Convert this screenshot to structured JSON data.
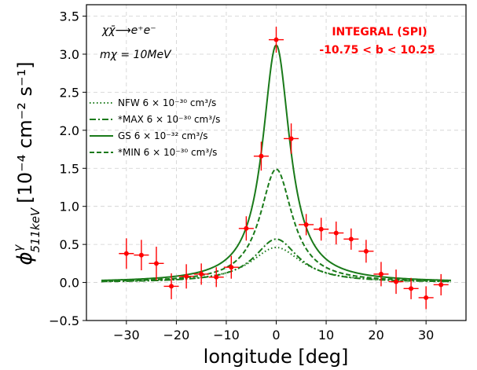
{
  "chart_data": {
    "type": "line",
    "xlabel": "longitude [deg]",
    "ylabel": {
      "main": "ϕ",
      "sup": "γ",
      "sub": "511keV",
      "units": "[10⁻⁴ cm⁻² s⁻¹]"
    },
    "xlim": [
      -38,
      38
    ],
    "ylim": [
      -0.5,
      3.65
    ],
    "xticks": [
      -30,
      -20,
      -10,
      0,
      10,
      20,
      30
    ],
    "yticks": [
      -0.5,
      0.0,
      0.5,
      1.0,
      1.5,
      2.0,
      2.5,
      3.0,
      3.5
    ],
    "xtick_labels": [
      "−30",
      "−20",
      "−10",
      "0",
      "10",
      "20",
      "30"
    ],
    "ytick_labels": [
      "−0.5",
      "0.0",
      "0.5",
      "1.0",
      "1.5",
      "2.0",
      "2.5",
      "3.0",
      "3.5"
    ],
    "grid": true,
    "annotations": {
      "process": "χχ̄⟶e⁺e⁻",
      "mass": "mχ = 10MeV",
      "instrument": "INTEGRAL (SPI)",
      "latitude_range": "-10.75  <  b  <  10.25"
    },
    "legend_position": "center-left",
    "series": [
      {
        "name": "NFW 6 × 10⁻³⁰ cm³/s",
        "style": "dotted",
        "peak": 0.46,
        "width": 6.2
      },
      {
        "name": "*MAX 6 × 10⁻³⁰ cm³/s",
        "style": "dashdot",
        "peak": 0.57,
        "width": 5.3
      },
      {
        "name": "GS 6 × 10⁻³² cm³/s",
        "style": "solid",
        "peak": 3.12,
        "width": 3.3
      },
      {
        "name": "*MIN 6 × 10⁻³⁰ cm³/s",
        "style": "dashed",
        "peak": 1.49,
        "width": 3.9
      }
    ],
    "curve_x_range": [
      -35,
      35
    ],
    "line_color": "#1a7a1a",
    "points": {
      "color": "#ff0000",
      "x": [
        -30,
        -27,
        -24,
        -21,
        -18,
        -15,
        -12,
        -9,
        -6,
        -3,
        0,
        3,
        6,
        9,
        12,
        15,
        18,
        21,
        24,
        27,
        30,
        33
      ],
      "y": [
        0.38,
        0.36,
        0.25,
        -0.05,
        0.08,
        0.11,
        0.07,
        0.2,
        0.71,
        1.66,
        3.19,
        1.89,
        0.76,
        0.7,
        0.65,
        0.57,
        0.41,
        0.11,
        0.01,
        -0.08,
        -0.2,
        -0.03
      ],
      "yerr": [
        0.2,
        0.2,
        0.22,
        0.17,
        0.16,
        0.14,
        0.13,
        0.15,
        0.16,
        0.19,
        0.17,
        0.2,
        0.14,
        0.15,
        0.15,
        0.14,
        0.15,
        0.16,
        0.16,
        0.14,
        0.15,
        0.14
      ],
      "xerr": 1.5
    }
  }
}
